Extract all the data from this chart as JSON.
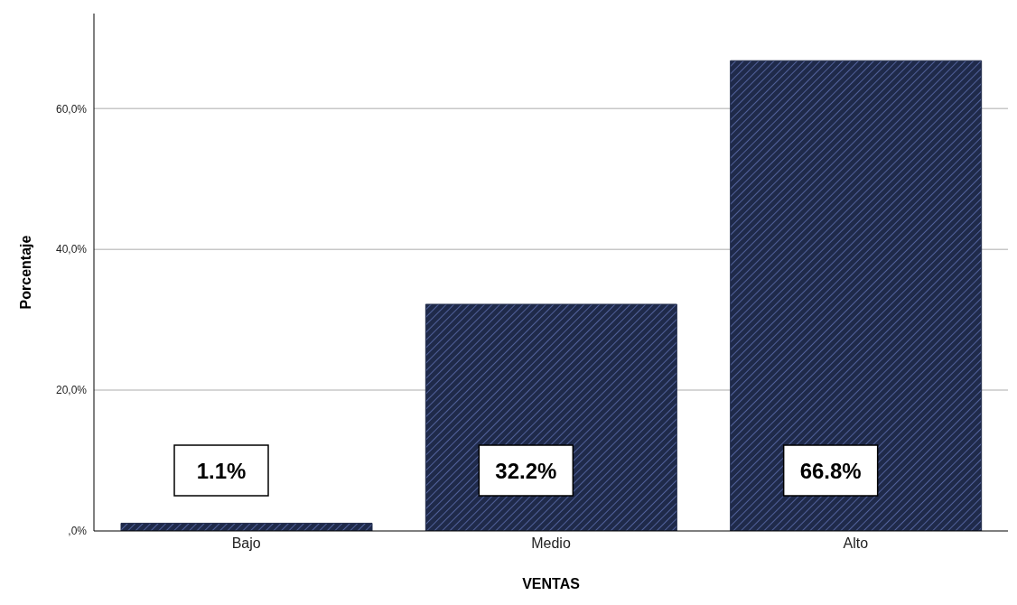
{
  "chart_data": {
    "type": "bar",
    "xlabel": "VENTAS",
    "ylabel": "Porcentaje",
    "categories": [
      "Bajo",
      "Medio",
      "Alto"
    ],
    "values": [
      1.1,
      32.2,
      66.8
    ],
    "value_labels": [
      "1.1%",
      "32.2%",
      "66.8%"
    ],
    "color": "#1f2a4a",
    "ylim": [
      0,
      73.5
    ],
    "yticks": [
      {
        "value": 0,
        "label": ",0%"
      },
      {
        "value": 20,
        "label": "20,0%"
      },
      {
        "value": 40,
        "label": "40,0%"
      },
      {
        "value": 60,
        "label": "60,0%"
      }
    ],
    "grid": "y"
  }
}
